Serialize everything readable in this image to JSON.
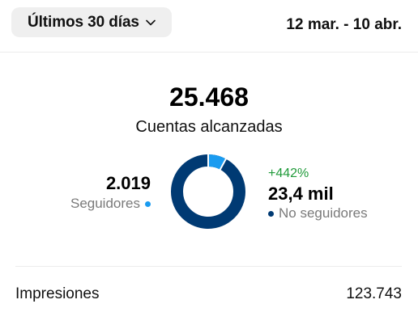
{
  "header": {
    "range_label": "Últimos 30 días",
    "date_range": "12 mar. - 10 abr."
  },
  "summary": {
    "total_value": "25.468",
    "total_label": "Cuentas alcanzadas"
  },
  "followers": {
    "value": "2.019",
    "label": "Seguidores",
    "color": "#1a9bf0",
    "share": 0.079
  },
  "non_followers": {
    "change": "+442%",
    "value": "23,4 mil",
    "label": "No seguidores",
    "color": "#003a73",
    "change_color": "#1f9a39"
  },
  "impressions": {
    "label": "Impresiones",
    "value": "123.743"
  }
}
